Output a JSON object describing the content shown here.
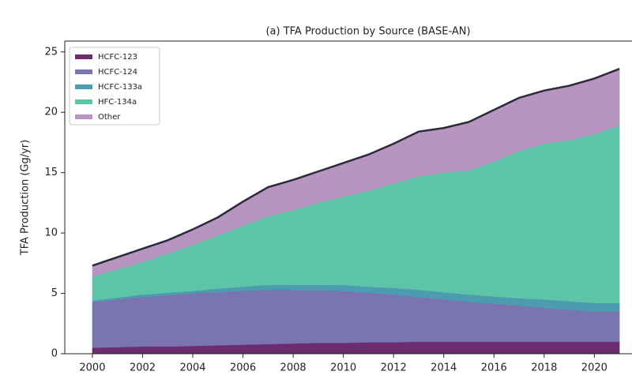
{
  "chart_data": {
    "type": "stacked_area",
    "title": "(a) TFA Production by Source (BASE-AN)",
    "y_label": "TFA Production (Gg/yr)",
    "x": [
      2000,
      2001,
      2002,
      2003,
      2004,
      2005,
      2006,
      2007,
      2008,
      2009,
      2010,
      2011,
      2012,
      2013,
      2014,
      2015,
      2016,
      2017,
      2018,
      2019,
      2020,
      2021
    ],
    "series": [
      {
        "name": "HCFC-123",
        "color": "#6b2d6e",
        "values": [
          0.5,
          0.55,
          0.6,
          0.6,
          0.65,
          0.7,
          0.75,
          0.8,
          0.85,
          0.9,
          0.9,
          0.95,
          0.95,
          1.0,
          1.0,
          1.0,
          1.0,
          1.0,
          1.0,
          1.0,
          1.0,
          1.0
        ]
      },
      {
        "name": "HCFC-124",
        "color": "#7a74b0",
        "values": [
          3.8,
          3.95,
          4.1,
          4.25,
          4.35,
          4.4,
          4.45,
          4.5,
          4.45,
          4.35,
          4.3,
          4.1,
          3.95,
          3.7,
          3.5,
          3.3,
          3.15,
          3.0,
          2.8,
          2.65,
          2.5,
          2.5
        ]
      },
      {
        "name": "HCFC-133a",
        "color": "#4d9bb0",
        "values": [
          0.1,
          0.15,
          0.2,
          0.2,
          0.2,
          0.3,
          0.35,
          0.4,
          0.4,
          0.45,
          0.5,
          0.5,
          0.55,
          0.6,
          0.6,
          0.6,
          0.6,
          0.6,
          0.7,
          0.7,
          0.7,
          0.7
        ]
      },
      {
        "name": "HFC-134a",
        "color": "#5ec4a8",
        "values": [
          2.0,
          2.35,
          2.7,
          3.25,
          3.8,
          4.4,
          5.05,
          5.7,
          6.2,
          6.8,
          7.3,
          7.95,
          8.65,
          9.4,
          9.9,
          10.3,
          11.15,
          12.2,
          12.9,
          13.35,
          14.0,
          14.7
        ]
      },
      {
        "name": "Other",
        "color": "#b894c0",
        "values": [
          0.9,
          1.0,
          1.1,
          1.1,
          1.3,
          1.5,
          2.0,
          2.4,
          2.5,
          2.6,
          2.8,
          3.0,
          3.3,
          3.7,
          3.7,
          4.0,
          4.3,
          4.4,
          4.4,
          4.5,
          4.6,
          4.7
        ]
      }
    ],
    "xlim": [
      1998.9,
      2021.5
    ],
    "xticks": [
      2000,
      2002,
      2004,
      2006,
      2008,
      2010,
      2012,
      2014,
      2016,
      2018,
      2020
    ],
    "ylim": [
      0,
      25.9
    ],
    "yticks": [
      0,
      5,
      10,
      15,
      20,
      25
    ],
    "outline_color": "#2a2a3a",
    "legend": "upper left"
  }
}
